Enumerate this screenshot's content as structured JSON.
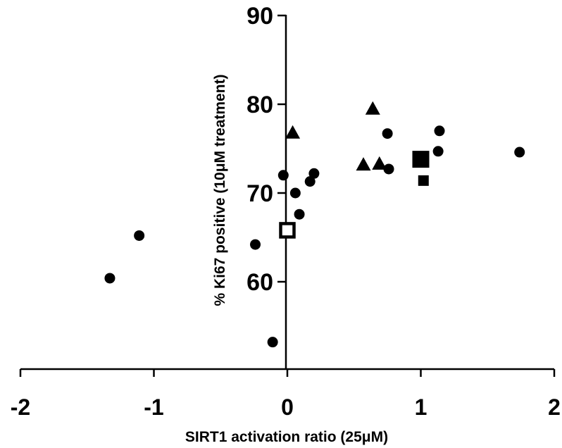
{
  "chart_data": {
    "type": "scatter",
    "title": "",
    "xlabel": "SIRT1 activation ratio (25μM)",
    "ylabel": "% Ki67 positive (10μM treatment)",
    "xlim": [
      -2,
      2
    ],
    "ylim": [
      50,
      90
    ],
    "x_ticks": [
      -2,
      -1,
      0,
      1,
      2
    ],
    "x_tick_labels": [
      "-2",
      "-1",
      "0",
      "1",
      "2"
    ],
    "y_ticks": [
      60,
      70,
      80,
      90
    ],
    "y_tick_labels": [
      "60",
      "70",
      "80",
      "90"
    ],
    "grid": false,
    "legend": "none",
    "series": [
      {
        "marker": "circle",
        "x": [
          -1.33,
          -1.11,
          -0.24,
          -0.11,
          -0.03,
          0.06,
          0.09,
          0.17,
          0.2,
          0.75,
          0.76,
          1.13,
          1.14,
          1.74
        ],
        "y": [
          60.4,
          65.2,
          64.2,
          53.2,
          72.0,
          70.0,
          67.6,
          71.3,
          72.2,
          76.7,
          72.7,
          74.7,
          77.0,
          74.6
        ]
      },
      {
        "marker": "triangle",
        "x": [
          0.04,
          0.57,
          0.64,
          0.69
        ],
        "y": [
          76.7,
          73.1,
          79.4,
          73.2
        ]
      },
      {
        "marker": "square",
        "x": [
          1.02
        ],
        "y": [
          71.4
        ]
      },
      {
        "marker": "large-square",
        "x": [
          1.0
        ],
        "y": [
          73.8
        ]
      },
      {
        "marker": "open-square",
        "x": [
          0.0
        ],
        "y": [
          65.8
        ]
      }
    ],
    "color": "#000000"
  }
}
